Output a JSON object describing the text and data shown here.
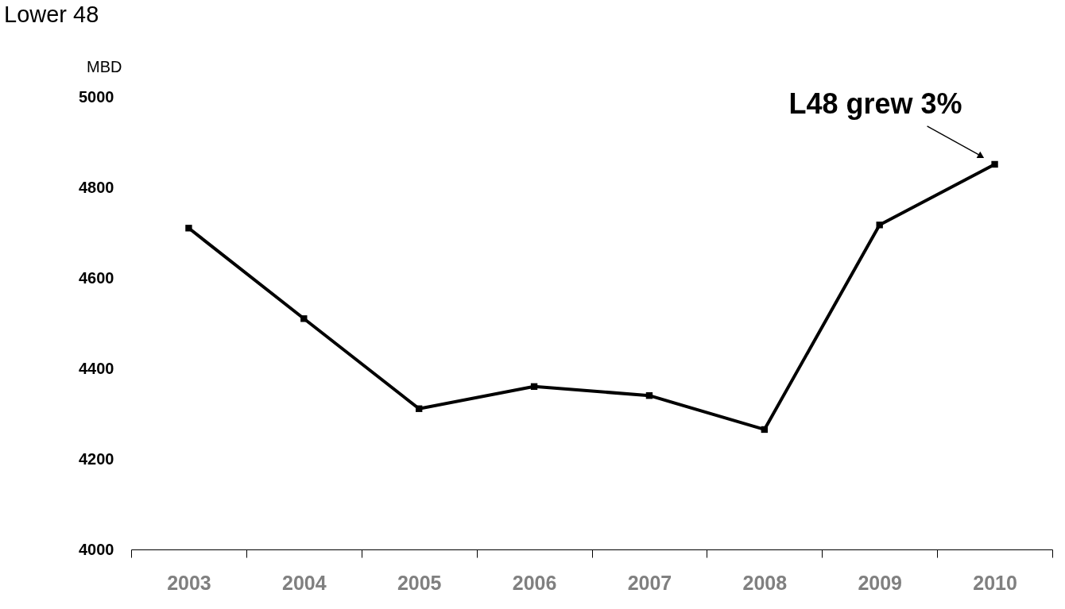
{
  "chart_data": {
    "type": "line",
    "title": "Lower 48",
    "ylabel": "MBD",
    "categories": [
      "2003",
      "2004",
      "2005",
      "2006",
      "2007",
      "2008",
      "2009",
      "2010"
    ],
    "series": [
      {
        "color": "#000000",
        "values": [
          4710,
          4510,
          4311,
          4360,
          4340,
          4265,
          4717,
          4851
        ]
      }
    ],
    "ylim": [
      4000,
      5000
    ],
    "yticks": [
      4000,
      4200,
      4400,
      4600,
      4800,
      5000
    ],
    "grid": false,
    "marker": "square",
    "line_style": "solid",
    "annotations": [
      {
        "text": "L48 grew 3%",
        "x": "2010",
        "y": 4851
      }
    ]
  }
}
